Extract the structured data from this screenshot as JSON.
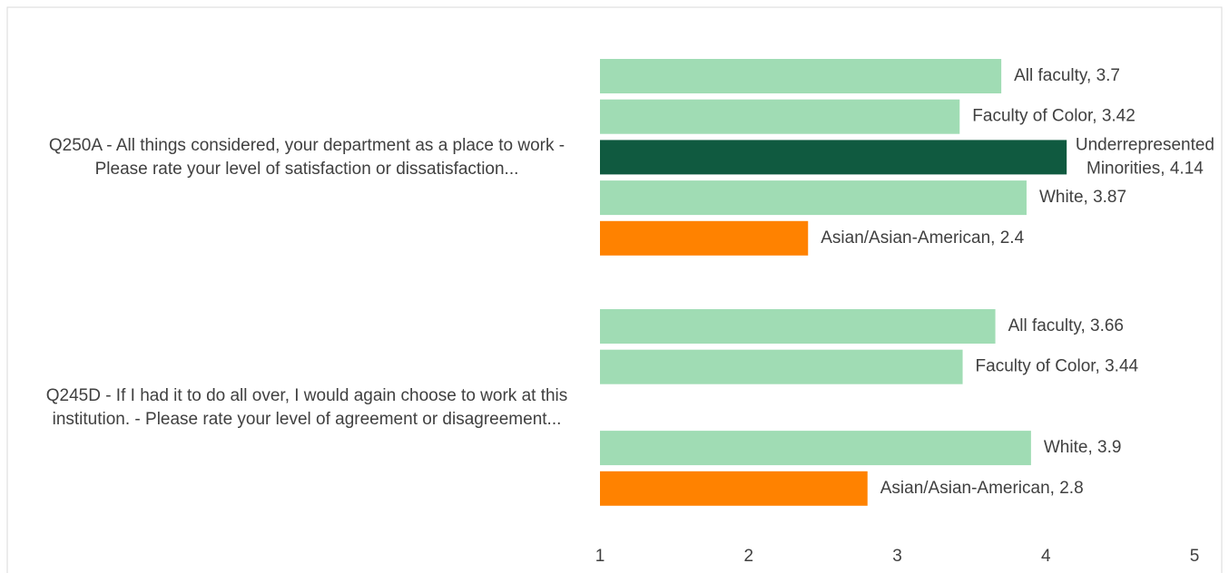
{
  "chart_data": {
    "type": "bar",
    "orientation": "horizontal",
    "categories": [
      "Q250A - All things considered, your department as a place to work - Please rate your level of satisfaction or dissatisfaction...",
      "Q245D - If I had it to do all over, I would again choose to work at this institution. - Please rate your level of agreement or disagreement..."
    ],
    "series": [
      {
        "name": "All faculty",
        "color": "#a0dcb4",
        "values": [
          3.7,
          3.66
        ],
        "value_labels": [
          "All faculty, 3.7",
          "All faculty, 3.66"
        ]
      },
      {
        "name": "Faculty of Color",
        "color": "#a0dcb4",
        "values": [
          3.42,
          3.44
        ],
        "value_labels": [
          "Faculty of Color, 3.42",
          "Faculty of Color, 3.44"
        ]
      },
      {
        "name": "Underrepresented Minorities",
        "color": "#105a40",
        "values": [
          4.14,
          null
        ],
        "value_labels": [
          "Underrepresented Minorities, 4.14",
          null
        ]
      },
      {
        "name": "White",
        "color": "#a0dcb4",
        "values": [
          3.87,
          3.9
        ],
        "value_labels": [
          "White, 3.87",
          "White, 3.9"
        ]
      },
      {
        "name": "Asian/Asian-American",
        "color": "#ff8200",
        "values": [
          2.4,
          2.8
        ],
        "value_labels": [
          "Asian/Asian-American, 2.4",
          "Asian/Asian-American, 2.8"
        ]
      }
    ],
    "xlim": [
      1,
      5
    ],
    "xticks": [
      1,
      2,
      3,
      4,
      5
    ],
    "grid": false
  }
}
